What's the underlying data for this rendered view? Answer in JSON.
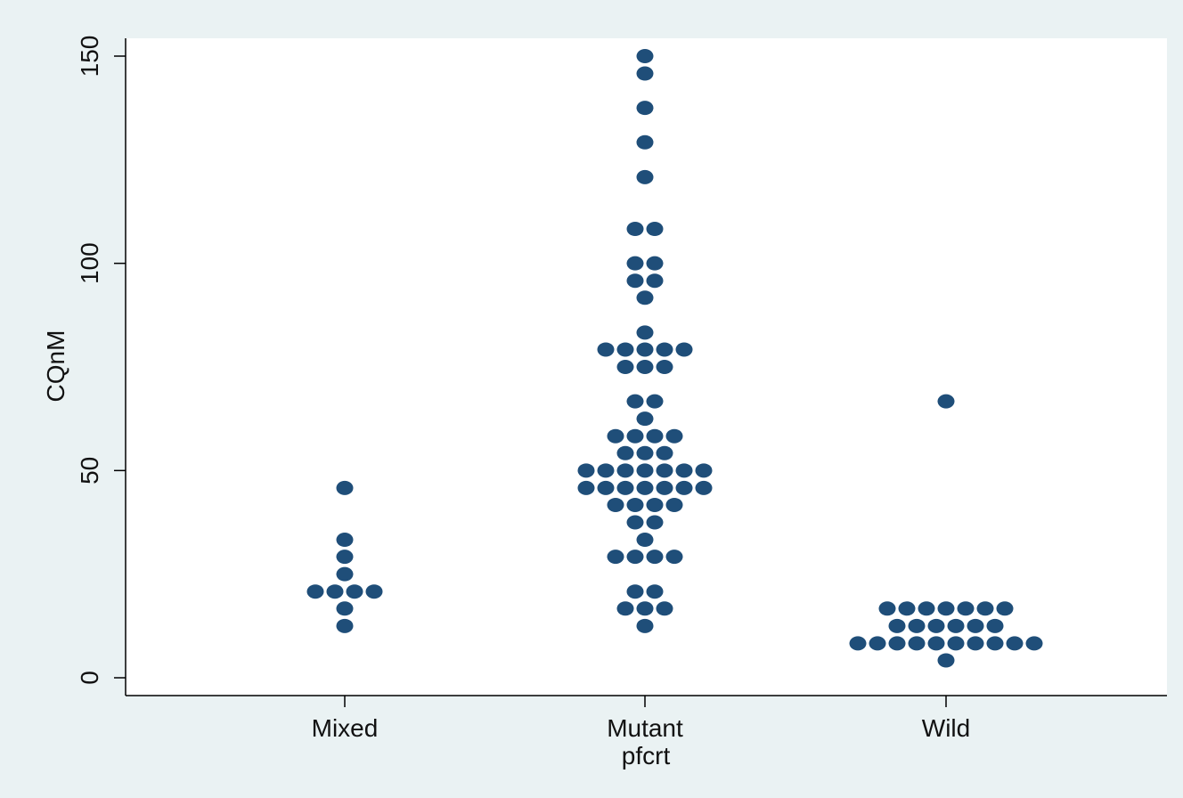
{
  "chart_data": {
    "type": "scatter",
    "subtype": "dot-plot",
    "title": "",
    "xlabel": "pfcrt",
    "ylabel": "CQnM",
    "categories": [
      "Mixed",
      "Mutant",
      "Wild"
    ],
    "ylim": [
      0,
      150
    ],
    "yticks": [
      "0",
      "50",
      "100",
      "150"
    ],
    "grid": false,
    "legend": "none",
    "marker_color": "#1f4e79",
    "background_color": "#eaf2f3",
    "plot_background_color": "#ffffff",
    "groups": [
      {
        "category": "Mixed",
        "values": [
          45.8,
          33.3,
          29.2,
          25,
          20.8,
          20.8,
          20.8,
          20.8,
          16.7,
          12.5
        ]
      },
      {
        "category": "Mutant",
        "values": [
          150,
          145.8,
          137.5,
          129.2,
          120.8,
          108.3,
          108.3,
          100,
          100,
          95.8,
          95.8,
          91.7,
          83.3,
          79.2,
          79.2,
          79.2,
          79.2,
          79.2,
          75,
          75,
          75,
          66.7,
          66.7,
          62.5,
          58.3,
          58.3,
          58.3,
          58.3,
          54.2,
          54.2,
          54.2,
          50,
          50,
          50,
          50,
          50,
          50,
          50,
          45.8,
          45.8,
          45.8,
          45.8,
          45.8,
          45.8,
          45.8,
          41.7,
          41.7,
          41.7,
          41.7,
          37.5,
          37.5,
          33.3,
          29.2,
          29.2,
          29.2,
          29.2,
          20.8,
          20.8,
          16.7,
          16.7,
          16.7,
          12.5
        ]
      },
      {
        "category": "Wild",
        "values": [
          66.7,
          16.7,
          16.7,
          16.7,
          16.7,
          16.7,
          16.7,
          16.7,
          12.5,
          12.5,
          12.5,
          12.5,
          12.5,
          12.5,
          8.3,
          8.3,
          8.3,
          8.3,
          8.3,
          8.3,
          8.3,
          8.3,
          8.3,
          8.3,
          4.2
        ]
      }
    ]
  }
}
